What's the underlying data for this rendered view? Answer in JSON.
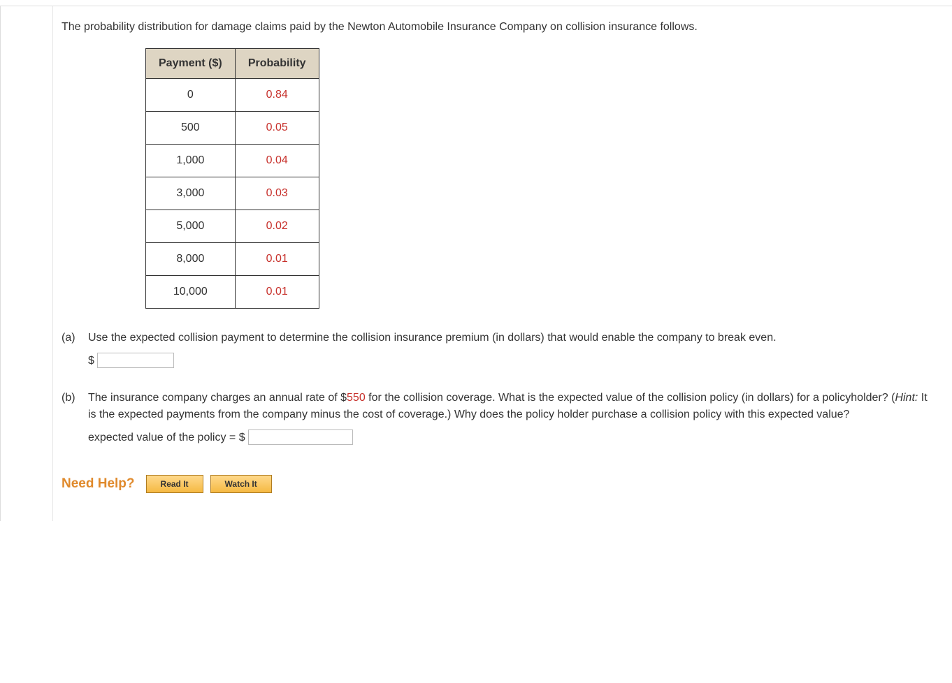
{
  "intro": "The probability distribution for damage claims paid by the Newton Automobile Insurance Company on collision insurance follows.",
  "table": {
    "headers": [
      "Payment ($)",
      "Probability"
    ],
    "rows": [
      {
        "payment": "0",
        "prob": "0.84"
      },
      {
        "payment": "500",
        "prob": "0.05"
      },
      {
        "payment": "1,000",
        "prob": "0.04"
      },
      {
        "payment": "3,000",
        "prob": "0.03"
      },
      {
        "payment": "5,000",
        "prob": "0.02"
      },
      {
        "payment": "8,000",
        "prob": "0.01"
      },
      {
        "payment": "10,000",
        "prob": "0.01"
      }
    ],
    "header_bg": "#ded5c3",
    "border_color": "#333333",
    "prob_color": "#c7302b"
  },
  "parts": {
    "a": {
      "label": "(a)",
      "text": "Use the expected collision payment to determine the collision insurance premium (in dollars) that would enable the company to break even.",
      "prefix": "$"
    },
    "b": {
      "label": "(b)",
      "text1": "The insurance company charges an annual rate of $",
      "rate": "550",
      "text2": " for the collision coverage. What is the expected value of the collision policy (in dollars) for a policyholder? (",
      "hint_label": "Hint:",
      "hint_text": " It is the expected payments from the company minus the cost of coverage.) Why does the policy holder purchase a collision policy with this expected value?",
      "answer_label": "expected value of the policy = $"
    }
  },
  "help": {
    "title": "Need Help?",
    "read": "Read It",
    "watch": "Watch It"
  }
}
